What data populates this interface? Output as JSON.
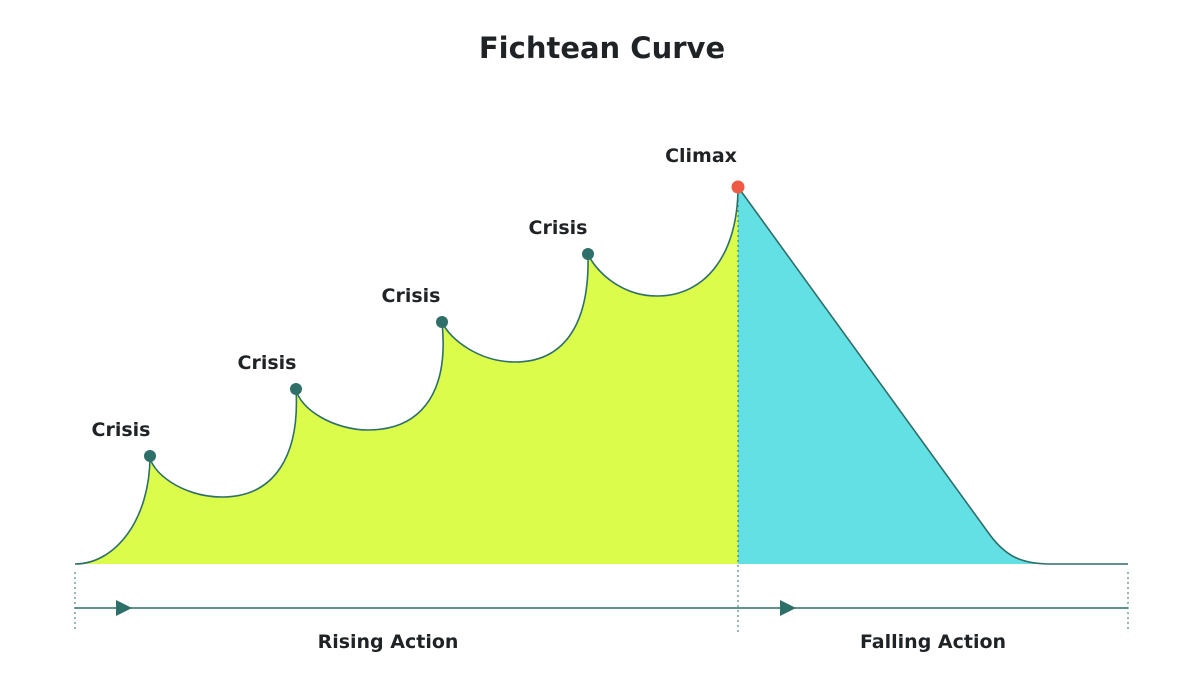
{
  "title": "Fichtean Curve",
  "crisis_points": [
    {
      "label": "Crisis"
    },
    {
      "label": "Crisis"
    },
    {
      "label": "Crisis"
    },
    {
      "label": "Crisis"
    }
  ],
  "climax": {
    "label": "Climax"
  },
  "phases": {
    "rising": {
      "label": "Rising Action"
    },
    "falling": {
      "label": "Falling Action"
    }
  },
  "colors": {
    "rising_fill": "#dcfc4c",
    "falling_fill": "#63e0e4",
    "stroke": "#2e6f6a",
    "crisis_marker": "#2e6f6a",
    "climax_marker": "#ef5a45",
    "text": "#1f2326"
  }
}
